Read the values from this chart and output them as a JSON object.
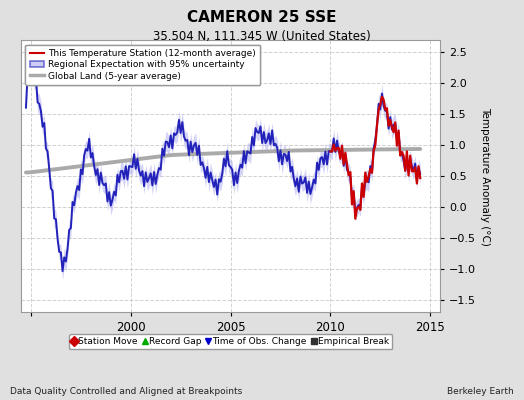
{
  "title": "CAMERON 25 SSE",
  "subtitle": "35.504 N, 111.345 W (United States)",
  "ylabel": "Temperature Anomaly (°C)",
  "xlabel_left": "Data Quality Controlled and Aligned at Breakpoints",
  "xlabel_right": "Berkeley Earth",
  "ylim": [
    -1.7,
    2.7
  ],
  "xlim": [
    1994.5,
    2015.5
  ],
  "yticks": [
    -1.5,
    -1.0,
    -0.5,
    0.0,
    0.5,
    1.0,
    1.5,
    2.0,
    2.5
  ],
  "xticks": [
    1995,
    2000,
    2005,
    2010,
    2015
  ],
  "xtick_labels": [
    "",
    "2000",
    "2005",
    "2010",
    "2015"
  ],
  "bg_color": "#e0e0e0",
  "plot_bg_color": "#ffffff",
  "red_line_color": "#cc0000",
  "blue_line_color": "#2222bb",
  "blue_fill_color": "#aaaaee",
  "gray_line_color": "#aaaaaa",
  "grid_color": "#cccccc",
  "legend_box_color": "#ffffff"
}
